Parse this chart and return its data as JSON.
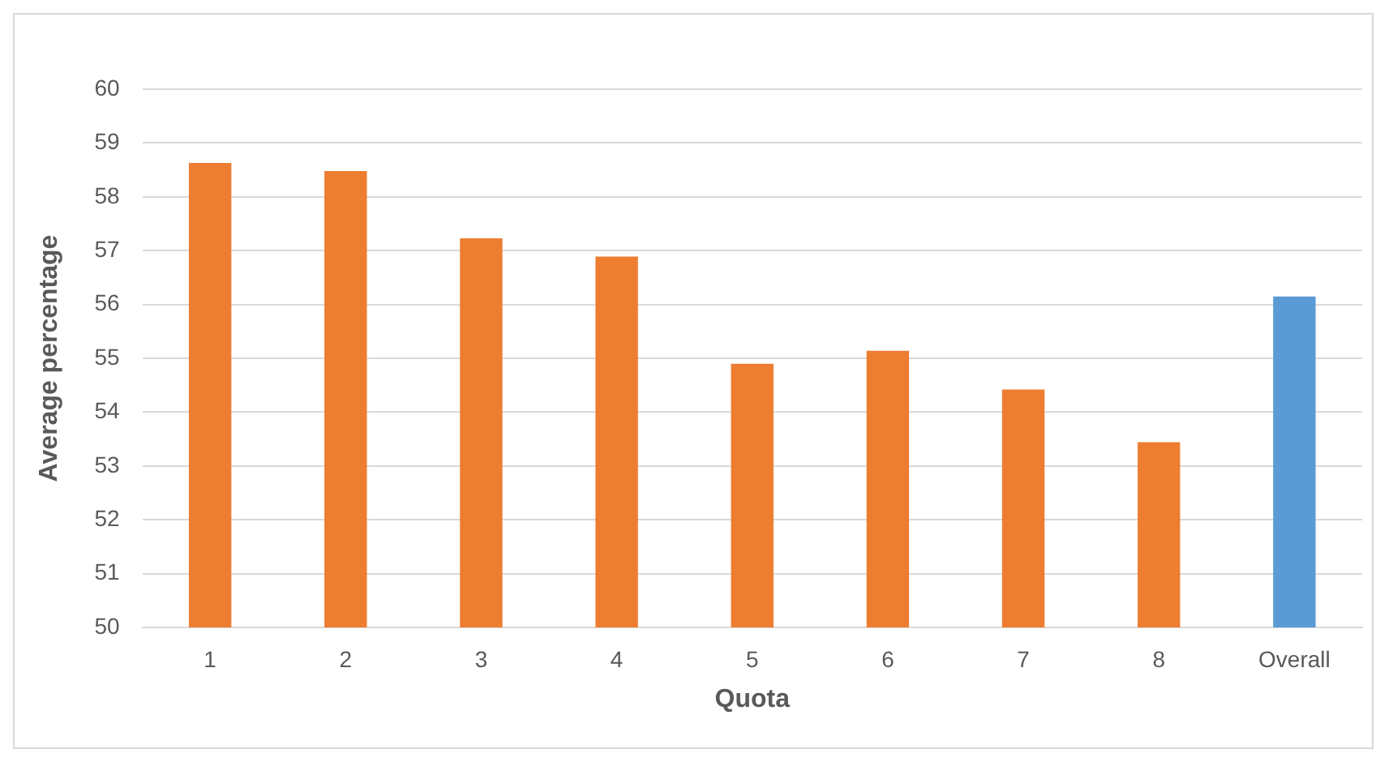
{
  "chart_data": {
    "type": "bar",
    "xlabel": "Quota",
    "ylabel": "Average percentage",
    "categories": [
      "1",
      "2",
      "3",
      "4",
      "5",
      "6",
      "7",
      "8",
      "Overall"
    ],
    "values": [
      58.63,
      58.48,
      57.23,
      56.89,
      54.9,
      55.14,
      54.42,
      53.44,
      56.15
    ],
    "colors": [
      "#ed7d31",
      "#ed7d31",
      "#ed7d31",
      "#ed7d31",
      "#ed7d31",
      "#ed7d31",
      "#ed7d31",
      "#ed7d31",
      "#5b9bd5"
    ],
    "ylim": [
      50,
      60
    ],
    "yticks": [
      50,
      51,
      52,
      53,
      54,
      55,
      56,
      57,
      58,
      59,
      60
    ],
    "grid": "y",
    "legend": false
  }
}
